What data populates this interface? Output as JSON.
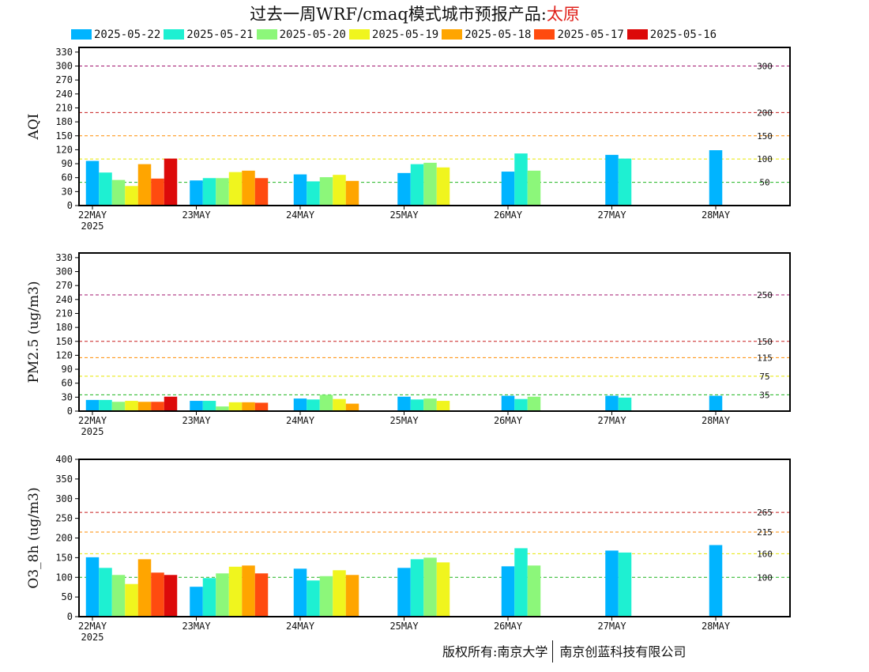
{
  "title": {
    "prefix": "过去一周WRF/cmaq模式城市预报产品:",
    "city": "太原"
  },
  "legend": [
    {
      "label": "2025-05-22",
      "color": "#00b4ff"
    },
    {
      "label": "2025-05-21",
      "color": "#1ef0d2"
    },
    {
      "label": "2025-05-20",
      "color": "#8cf77a"
    },
    {
      "label": "2025-05-19",
      "color": "#f0f51e"
    },
    {
      "label": "2025-05-18",
      "color": "#ffa500"
    },
    {
      "label": "2025-05-17",
      "color": "#ff4b0f"
    },
    {
      "label": "2025-05-16",
      "color": "#dc0a0a"
    }
  ],
  "x_ticks": [
    "22MAY",
    "23MAY",
    "24MAY",
    "25MAY",
    "26MAY",
    "27MAY",
    "28MAY"
  ],
  "x_year": "2025",
  "copyright": {
    "owner": "版权所有:南京大学",
    "partner": "南京创蓝科技有限公司"
  },
  "chart_data": [
    {
      "type": "bar",
      "ylabel": "AQI",
      "ylim": [
        0,
        340
      ],
      "yticks": [
        0,
        30,
        60,
        90,
        120,
        150,
        180,
        210,
        240,
        270,
        300,
        330
      ],
      "ref_lines": [
        {
          "value": 300,
          "label": "300",
          "color": "#a0146e"
        },
        {
          "value": 200,
          "label": "200",
          "color": "#c81e1e"
        },
        {
          "value": 150,
          "label": "150",
          "color": "#ff8c00"
        },
        {
          "value": 100,
          "label": "100",
          "color": "#e6e600"
        },
        {
          "value": 50,
          "label": "50",
          "color": "#1eb41e"
        }
      ],
      "groups": [
        [
          96,
          71,
          55,
          42,
          89,
          58,
          101
        ],
        [
          54,
          59,
          59,
          72,
          75,
          59
        ],
        [
          67,
          52,
          61,
          66,
          53
        ],
        [
          70,
          89,
          92,
          82
        ],
        [
          73,
          112,
          75
        ],
        [
          109,
          101
        ],
        [
          119
        ]
      ]
    },
    {
      "type": "bar",
      "ylabel": "PM2.5 (ug/m3)",
      "ylim": [
        0,
        340
      ],
      "yticks": [
        0,
        30,
        60,
        90,
        120,
        150,
        180,
        210,
        240,
        270,
        300,
        330
      ],
      "ref_lines": [
        {
          "value": 250,
          "label": "250",
          "color": "#a0146e"
        },
        {
          "value": 150,
          "label": "150",
          "color": "#c81e1e"
        },
        {
          "value": 115,
          "label": "115",
          "color": "#ff8c00"
        },
        {
          "value": 75,
          "label": "75",
          "color": "#e6e600"
        },
        {
          "value": 35,
          "label": "35",
          "color": "#1eb41e"
        }
      ],
      "groups": [
        [
          24,
          24,
          20,
          22,
          20,
          20,
          31
        ],
        [
          22,
          22,
          10,
          19,
          19,
          18
        ],
        [
          27,
          25,
          35,
          26,
          16
        ],
        [
          31,
          25,
          27,
          22
        ],
        [
          33,
          26,
          31
        ],
        [
          33,
          29
        ],
        [
          33
        ]
      ]
    },
    {
      "type": "bar",
      "ylabel": "O3_8h (ug/m3)",
      "ylim": [
        0,
        400
      ],
      "yticks": [
        0,
        50,
        100,
        150,
        200,
        250,
        300,
        350,
        400
      ],
      "ref_lines": [
        {
          "value": 265,
          "label": "265",
          "color": "#c81e1e"
        },
        {
          "value": 215,
          "label": "215",
          "color": "#ff8c00"
        },
        {
          "value": 160,
          "label": "160",
          "color": "#e6e600"
        },
        {
          "value": 100,
          "label": "100",
          "color": "#1eb41e"
        }
      ],
      "groups": [
        [
          151,
          124,
          106,
          83,
          146,
          112,
          106
        ],
        [
          76,
          98,
          110,
          127,
          130,
          110
        ],
        [
          122,
          92,
          103,
          118,
          106
        ],
        [
          124,
          146,
          150,
          138
        ],
        [
          128,
          174,
          130
        ],
        [
          168,
          163
        ],
        [
          182
        ]
      ]
    }
  ]
}
